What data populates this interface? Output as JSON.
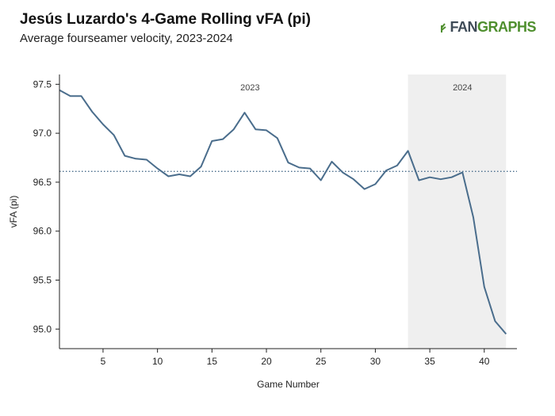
{
  "header": {
    "title": "Jesús Luzardo's 4-Game Rolling vFA (pi)",
    "subtitle": "Average fourseamer velocity, 2023-2024",
    "logo_fan": "FAN",
    "logo_graphs": "GRAPHS"
  },
  "chart_data": {
    "type": "line",
    "title": "Jesús Luzardo's 4-Game Rolling vFA (pi)",
    "subtitle": "Average fourseamer velocity, 2023-2024",
    "xlabel": "Game Number",
    "ylabel": "vFA (pi)",
    "xlim": [
      1,
      43
    ],
    "ylim": [
      94.8,
      97.6
    ],
    "xticks": [
      5,
      10,
      15,
      20,
      25,
      30,
      35,
      40
    ],
    "yticks": [
      95.0,
      95.5,
      96.0,
      96.5,
      97.0,
      97.5
    ],
    "ytick_labels": [
      "95.0",
      "95.5",
      "96.0",
      "96.5",
      "97.0",
      "97.5"
    ],
    "grid": false,
    "reference_line": {
      "y": 96.61,
      "style": "dotted"
    },
    "season_labels": [
      {
        "label": "2023",
        "x": 18.5
      },
      {
        "label": "2024",
        "x": 38
      }
    ],
    "shaded_region": {
      "label": "2024",
      "x_start": 33,
      "x_end": 42,
      "color": "#efefef"
    },
    "line_color": "#4a6d8c",
    "series": [
      {
        "x": [
          1,
          2,
          3,
          4,
          5,
          6,
          7,
          8,
          9,
          10,
          11,
          12,
          13,
          14,
          15,
          16,
          17,
          18,
          19,
          20,
          21,
          22,
          23,
          24,
          25,
          26,
          27,
          28,
          29,
          30,
          31,
          32,
          33,
          34,
          35,
          36,
          37,
          38,
          39,
          40,
          41,
          42
        ],
        "values": [
          97.44,
          97.38,
          97.38,
          97.22,
          97.09,
          96.98,
          96.77,
          96.74,
          96.73,
          96.64,
          96.56,
          96.58,
          96.56,
          96.66,
          96.92,
          96.94,
          97.04,
          97.21,
          97.04,
          97.03,
          96.95,
          96.7,
          96.65,
          96.64,
          96.52,
          96.71,
          96.6,
          96.53,
          96.43,
          96.48,
          96.62,
          96.67,
          96.82,
          96.52,
          96.55,
          96.53,
          96.55,
          96.6,
          96.14,
          95.43,
          95.08,
          94.95
        ]
      }
    ]
  }
}
